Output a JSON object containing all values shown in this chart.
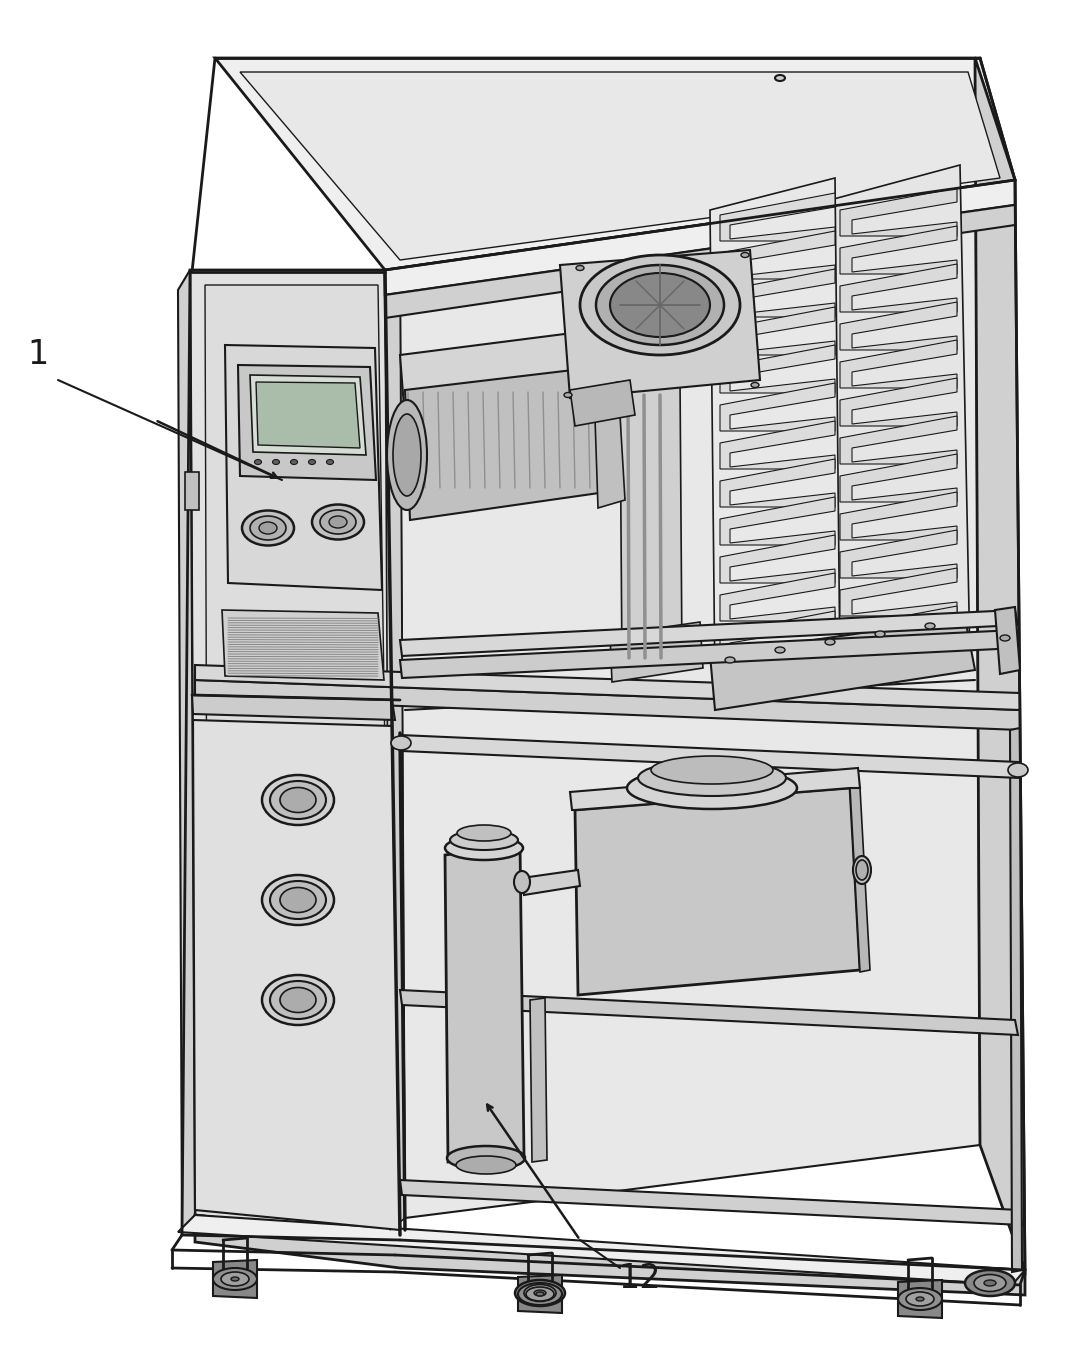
{
  "background_color": "#ffffff",
  "line_color": "#1a1a1a",
  "label_1": "1",
  "label_12": "12",
  "label_fontsize": 24,
  "figsize": [
    10.77,
    13.58
  ],
  "dpi": 100,
  "colors": {
    "face_front": "#e2e2e2",
    "face_top": "#efefef",
    "face_side": "#d0d0d0",
    "face_dark": "#b8b8b8",
    "inner_wall": "#e8e8e8",
    "inner_floor": "#d8d8d8",
    "white": "#ffffff",
    "light": "#f0f0f0",
    "medium": "#c8c8c8",
    "dark": "#a0a0a0"
  }
}
